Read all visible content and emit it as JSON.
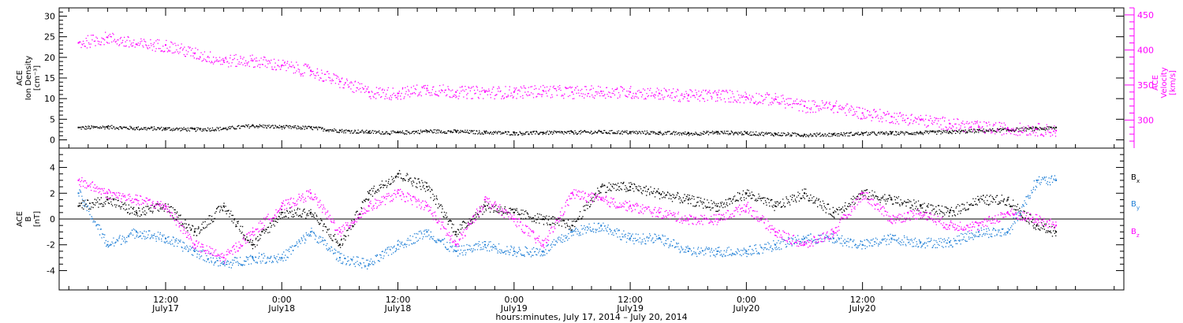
{
  "colors": {
    "black": "#000000",
    "magenta": "#ff00ff",
    "blue": "#1f7fd6"
  },
  "chart_data": [
    {
      "type": "scatter",
      "panel": "top",
      "ylabel_left": [
        "ACE",
        "Ion Density",
        "[cm⁻³]"
      ],
      "ylabel_right": [
        "ACE",
        "Velocity",
        "[km/s]"
      ],
      "ylim_left": [
        -2,
        32
      ],
      "yticks_left": [
        "0",
        "5",
        "10",
        "15",
        "20",
        "25",
        "30"
      ],
      "ylim_right": [
        260,
        460
      ],
      "yticks_right": [
        "300",
        "350",
        "400",
        "450"
      ],
      "grid": false,
      "series": [
        {
          "axis": "left",
          "color": "#000000",
          "points": [
            [
              -9,
              3
            ],
            [
              -6,
              3.2
            ],
            [
              -3,
              2.9
            ],
            [
              0,
              2.8
            ],
            [
              3,
              2.6
            ],
            [
              6,
              2.8
            ],
            [
              9,
              3.5
            ],
            [
              12,
              3.2
            ],
            [
              15,
              3
            ],
            [
              18,
              2.3
            ],
            [
              21,
              2
            ],
            [
              24,
              1.8
            ],
            [
              27,
              2.2
            ],
            [
              30,
              2.1
            ],
            [
              33,
              1.9
            ],
            [
              36,
              1.7
            ],
            [
              39,
              1.8
            ],
            [
              42,
              1.9
            ],
            [
              45,
              2
            ],
            [
              48,
              1.9
            ],
            [
              51,
              1.8
            ],
            [
              54,
              1.6
            ],
            [
              57,
              1.9
            ],
            [
              60,
              1.7
            ],
            [
              63,
              1.5
            ],
            [
              66,
              1.3
            ],
            [
              69,
              1.4
            ],
            [
              72,
              1.6
            ],
            [
              75,
              1.7
            ],
            [
              78,
              1.8
            ],
            [
              81,
              2
            ],
            [
              84,
              2.3
            ],
            [
              87,
              2.5
            ],
            [
              90,
              2.8
            ],
            [
              92,
              3
            ]
          ]
        },
        {
          "axis": "right",
          "color": "#ff00ff",
          "points": [
            [
              -9,
              410
            ],
            [
              -6,
              418
            ],
            [
              -3,
              408
            ],
            [
              0,
              407
            ],
            [
              3,
              395
            ],
            [
              6,
              385
            ],
            [
              9,
              385
            ],
            [
              12,
              378
            ],
            [
              15,
              370
            ],
            [
              18,
              355
            ],
            [
              21,
              340
            ],
            [
              24,
              338
            ],
            [
              27,
              345
            ],
            [
              30,
              340
            ],
            [
              33,
              340
            ],
            [
              36,
              340
            ],
            [
              39,
              342
            ],
            [
              42,
              340
            ],
            [
              45,
              341
            ],
            [
              48,
              340
            ],
            [
              51,
              338
            ],
            [
              54,
              335
            ],
            [
              57,
              336
            ],
            [
              60,
              333
            ],
            [
              63,
              330
            ],
            [
              66,
              320
            ],
            [
              69,
              320
            ],
            [
              72,
              310
            ],
            [
              75,
              305
            ],
            [
              78,
              300
            ],
            [
              81,
              295
            ],
            [
              84,
              290
            ],
            [
              87,
              288
            ],
            [
              90,
              287
            ],
            [
              92,
              285
            ]
          ]
        }
      ]
    },
    {
      "type": "scatter",
      "panel": "bottom",
      "ylabel_left": [
        "ACE",
        "B",
        "[nT]"
      ],
      "ylim": [
        -5.5,
        5.5
      ],
      "yticks": [
        "-4",
        "-2",
        "0",
        "2",
        "4"
      ],
      "zero_line": true,
      "legend_placement": "right",
      "legend": [
        "B",
        "B",
        "B"
      ],
      "legend_subscripts": [
        "x",
        "y",
        "z"
      ],
      "series": [
        {
          "name": "Bx",
          "color": "#000000",
          "points": [
            [
              -9,
              1
            ],
            [
              -6,
              1.5
            ],
            [
              -3,
              0.5
            ],
            [
              0,
              1
            ],
            [
              3,
              -1
            ],
            [
              6,
              1
            ],
            [
              9,
              -2
            ],
            [
              12,
              0.5
            ],
            [
              15,
              0.5
            ],
            [
              18,
              -2
            ],
            [
              21,
              2
            ],
            [
              24,
              3.5
            ],
            [
              27,
              2.5
            ],
            [
              30,
              -1
            ],
            [
              33,
              1
            ],
            [
              36,
              0.5
            ],
            [
              39,
              0
            ],
            [
              42,
              -0.5
            ],
            [
              45,
              2.5
            ],
            [
              48,
              2.5
            ],
            [
              51,
              2
            ],
            [
              54,
              1.5
            ],
            [
              57,
              1
            ],
            [
              60,
              2
            ],
            [
              63,
              1
            ],
            [
              66,
              2
            ],
            [
              69,
              0.5
            ],
            [
              72,
              2
            ],
            [
              75,
              1.5
            ],
            [
              78,
              1
            ],
            [
              81,
              0.5
            ],
            [
              84,
              1.5
            ],
            [
              87,
              1.5
            ],
            [
              90,
              -0.5
            ],
            [
              92,
              -1
            ]
          ]
        },
        {
          "name": "By",
          "color": "#1f7fd6",
          "points": [
            [
              -9,
              2
            ],
            [
              -6,
              -2
            ],
            [
              -3,
              -1
            ],
            [
              0,
              -1.5
            ],
            [
              3,
              -2.5
            ],
            [
              6,
              -3.5
            ],
            [
              9,
              -3
            ],
            [
              12,
              -3
            ],
            [
              15,
              -1
            ],
            [
              18,
              -3
            ],
            [
              21,
              -3.5
            ],
            [
              24,
              -2
            ],
            [
              27,
              -1
            ],
            [
              30,
              -2.5
            ],
            [
              33,
              -2
            ],
            [
              36,
              -2.5
            ],
            [
              39,
              -2.5
            ],
            [
              42,
              -1
            ],
            [
              45,
              -0.5
            ],
            [
              48,
              -1.5
            ],
            [
              51,
              -1.5
            ],
            [
              54,
              -2.5
            ],
            [
              57,
              -2.5
            ],
            [
              60,
              -2.5
            ],
            [
              63,
              -2
            ],
            [
              66,
              -1.5
            ],
            [
              69,
              -1.5
            ],
            [
              72,
              -2
            ],
            [
              75,
              -1.5
            ],
            [
              78,
              -1.8
            ],
            [
              81,
              -1.8
            ],
            [
              84,
              -1
            ],
            [
              87,
              -1
            ],
            [
              90,
              3
            ],
            [
              92,
              3
            ]
          ]
        },
        {
          "name": "Bz",
          "color": "#ff00ff",
          "points": [
            [
              -9,
              3
            ],
            [
              -6,
              2
            ],
            [
              -3,
              1.5
            ],
            [
              0,
              1
            ],
            [
              3,
              -2
            ],
            [
              6,
              -3
            ],
            [
              9,
              -1
            ],
            [
              12,
              1
            ],
            [
              15,
              2
            ],
            [
              18,
              -1
            ],
            [
              21,
              1
            ],
            [
              24,
              2
            ],
            [
              27,
              1
            ],
            [
              30,
              -2
            ],
            [
              33,
              1.5
            ],
            [
              36,
              0
            ],
            [
              39,
              -2
            ],
            [
              42,
              2
            ],
            [
              45,
              1.5
            ],
            [
              48,
              1
            ],
            [
              51,
              0.5
            ],
            [
              54,
              0
            ],
            [
              57,
              0
            ],
            [
              60,
              1
            ],
            [
              63,
              -1
            ],
            [
              66,
              -2
            ],
            [
              69,
              -1
            ],
            [
              72,
              2
            ],
            [
              75,
              0
            ],
            [
              78,
              0.5
            ],
            [
              81,
              -0.5
            ],
            [
              84,
              -0.5
            ],
            [
              87,
              0.5
            ],
            [
              90,
              0
            ],
            [
              92,
              -0.5
            ]
          ]
        }
      ]
    }
  ],
  "x_axis": {
    "range_hours": [
      -11,
      99
    ],
    "ticks": [
      {
        "h": 0,
        "t": "12:00",
        "d": "July17"
      },
      {
        "h": 12,
        "t": "0:00",
        "d": "July18"
      },
      {
        "h": 24,
        "t": "12:00",
        "d": "July18"
      },
      {
        "h": 36,
        "t": "0:00",
        "d": "July19"
      },
      {
        "h": 48,
        "t": "12:00",
        "d": "July19"
      },
      {
        "h": 60,
        "t": "0:00",
        "d": "July20"
      },
      {
        "h": 72,
        "t": "12:00",
        "d": "July20"
      }
    ],
    "title": "hours:minutes, July 17, 2014 – July 20, 2014"
  }
}
